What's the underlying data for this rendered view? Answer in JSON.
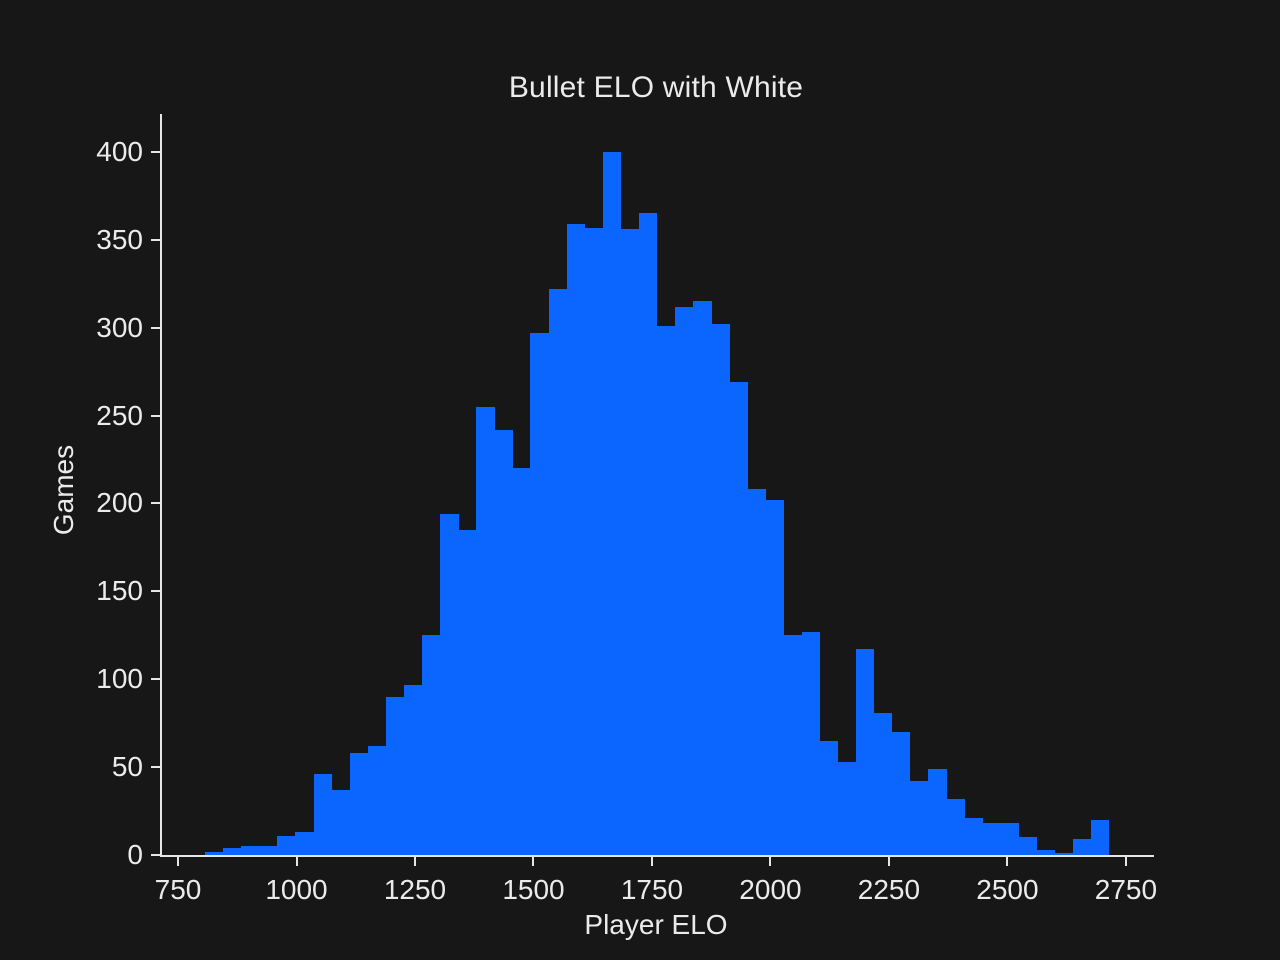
{
  "chart_data": {
    "type": "bar",
    "subtype": "histogram",
    "title": "Bullet ELO with White",
    "xlabel": "Player ELO",
    "ylabel": "Games",
    "bin_start_elo": 803,
    "bin_width_elo": 38.13,
    "values": [
      2,
      4,
      5,
      5,
      11,
      13,
      46,
      37,
      58,
      62,
      90,
      97,
      125,
      194,
      185,
      255,
      242,
      220,
      297,
      322,
      359,
      357,
      400,
      356,
      365,
      301,
      312,
      315,
      302,
      269,
      208,
      202,
      125,
      127,
      65,
      53,
      117,
      81,
      70,
      42,
      49,
      32,
      21,
      18,
      18,
      10,
      3,
      1,
      9,
      20
    ],
    "x_ticks": [
      750,
      1000,
      1250,
      1500,
      1750,
      2000,
      2250,
      2500,
      2750
    ],
    "y_ticks": [
      0,
      50,
      100,
      150,
      200,
      250,
      300,
      350,
      400
    ],
    "xlim": [
      712,
      2805
    ],
    "ylim": [
      0,
      421.6
    ],
    "grid": false,
    "legend": "none",
    "bar_color": "#0a66ff",
    "background_color": "#171717",
    "text_color": "#ebebeb",
    "axis_color": "#e6e6e6"
  }
}
